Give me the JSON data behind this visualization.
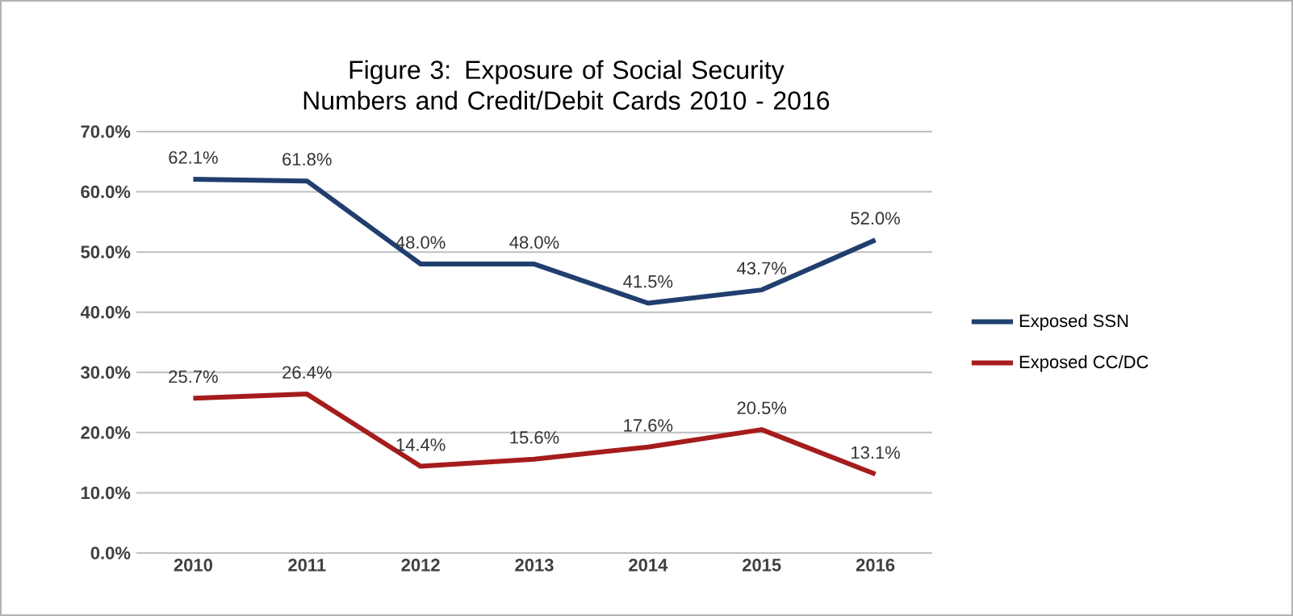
{
  "chart_data": {
    "type": "line",
    "title": "Figure 3:  Exposure of Social Security Numbers and Credit/Debit Cards 2010 - 2016",
    "categories": [
      "2010",
      "2011",
      "2012",
      "2013",
      "2014",
      "2015",
      "2016"
    ],
    "series": [
      {
        "name": "Exposed SSN",
        "color": "#203f6e",
        "values": [
          62.1,
          61.8,
          48.0,
          48.0,
          41.5,
          43.7,
          52.0
        ],
        "value_labels": [
          "62.1%",
          "61.8%",
          "48.0%",
          "48.0%",
          "41.5%",
          "43.7%",
          "52.0%"
        ]
      },
      {
        "name": "Exposed CC/DC",
        "color": "#a51c1c",
        "values": [
          25.7,
          26.4,
          14.4,
          15.6,
          17.6,
          20.5,
          13.1
        ],
        "value_labels": [
          "25.7%",
          "26.4%",
          "14.4%",
          "15.6%",
          "17.6%",
          "20.5%",
          "13.1%"
        ]
      }
    ],
    "ylim": [
      0,
      70
    ],
    "yticks": [
      {
        "value": 0,
        "label": "0.0%"
      },
      {
        "value": 10,
        "label": "10.0%"
      },
      {
        "value": 20,
        "label": "20.0%"
      },
      {
        "value": 30,
        "label": "30.0%"
      },
      {
        "value": 40,
        "label": "40.0%"
      },
      {
        "value": 50,
        "label": "50.0%"
      },
      {
        "value": 60,
        "label": "60.0%"
      },
      {
        "value": 70,
        "label": "70.0%"
      }
    ],
    "grid": "y",
    "legend": "right",
    "marker": "none",
    "line_style": "solid"
  }
}
